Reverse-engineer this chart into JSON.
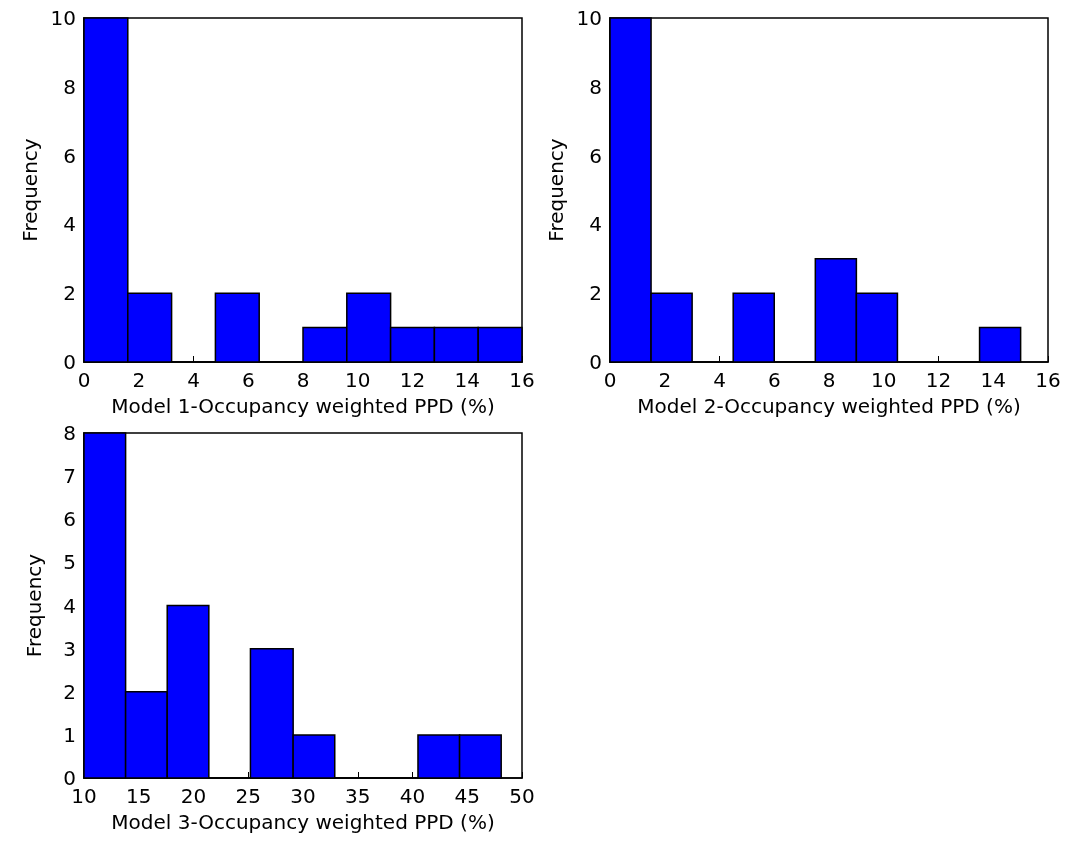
{
  "chart_data": [
    {
      "type": "histogram",
      "xlabel": "Model 1-Occupancy weighted PPD (%)",
      "ylabel": "Frequency",
      "bins": [
        0,
        1.6,
        3.2,
        4.8,
        6.4,
        8,
        9.6,
        11.2,
        12.8,
        14.4,
        16
      ],
      "values": [
        10,
        2,
        0,
        2,
        0,
        1,
        2,
        1,
        1,
        1
      ],
      "color": "#0000ff",
      "xlim": [
        0,
        16
      ],
      "xticks": [
        0,
        2,
        4,
        6,
        8,
        10,
        12,
        14,
        16
      ],
      "ylim": [
        0,
        10
      ],
      "yticks": [
        0,
        2,
        4,
        6,
        8,
        10
      ],
      "grid": false
    },
    {
      "type": "histogram",
      "xlabel": "Model 2-Occupancy weighted PPD (%)",
      "ylabel": "Frequency",
      "bins": [
        0,
        1.5,
        3,
        4.5,
        6,
        7.5,
        9,
        10.5,
        12,
        13.5,
        15
      ],
      "values": [
        10,
        2,
        0,
        2,
        0,
        3,
        2,
        0,
        0,
        1
      ],
      "color": "#0000ff",
      "xlim": [
        0,
        16
      ],
      "xticks": [
        0,
        2,
        4,
        6,
        8,
        10,
        12,
        14,
        16
      ],
      "ylim": [
        0,
        10
      ],
      "yticks": [
        0,
        2,
        4,
        6,
        8,
        10
      ],
      "grid": false
    },
    {
      "type": "histogram",
      "xlabel": "Model 3-Occupancy weighted PPD (%)",
      "ylabel": "Frequency",
      "bins": [
        10,
        13.8,
        17.6,
        21.4,
        25.2,
        29.1,
        32.9,
        40.5,
        44.3,
        48.1
      ],
      "values": [
        8,
        2,
        4,
        0,
        3,
        1,
        0,
        1,
        1
      ],
      "color": "#0000ff",
      "xlim": [
        10,
        50
      ],
      "xticks": [
        10,
        15,
        20,
        25,
        30,
        35,
        40,
        45,
        50
      ],
      "ylim": [
        0,
        8
      ],
      "yticks": [
        0,
        1,
        2,
        3,
        4,
        5,
        6,
        7,
        8
      ],
      "grid": false
    }
  ]
}
